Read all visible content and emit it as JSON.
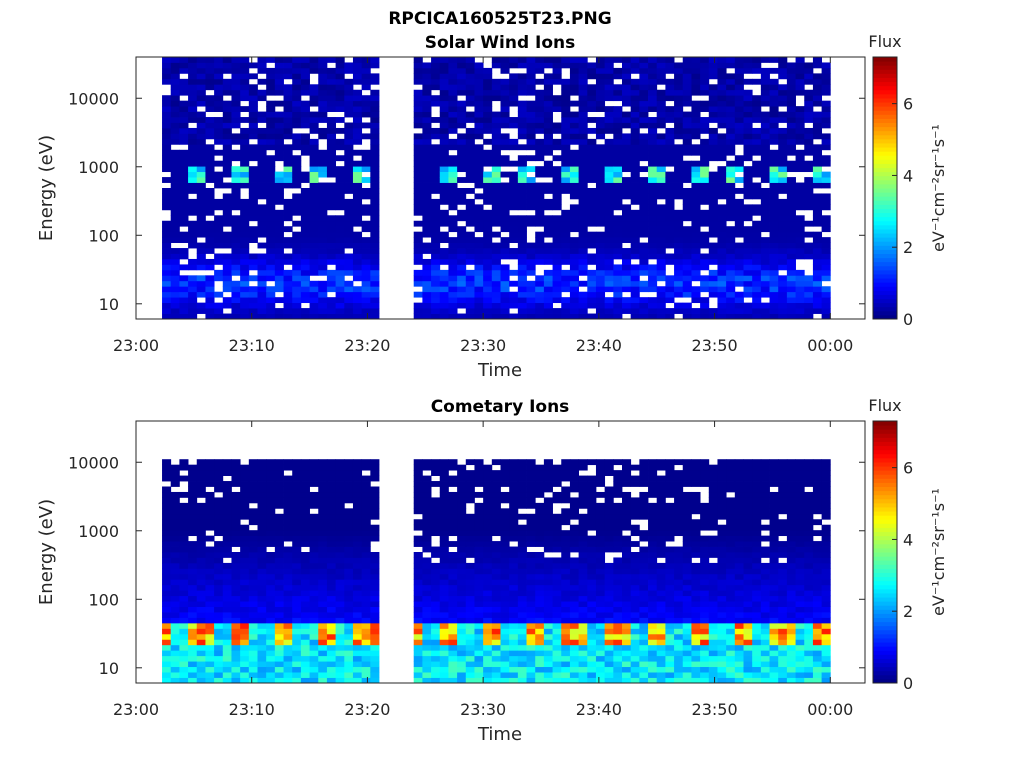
{
  "figure": {
    "title": "RPCICA160525T23.PNG",
    "colors": {
      "plot_background": "#ffffff",
      "axis": "#262626",
      "text": "#262626",
      "colormap": "jet"
    }
  },
  "chart_data": [
    {
      "type": "heatmap",
      "title": "Solar Wind Ions",
      "xlabel": "Time",
      "ylabel": "Energy (eV)",
      "y_scale": "log",
      "ylim": [
        6,
        40000
      ],
      "x_range": [
        "23:00",
        "00:03"
      ],
      "x_ticks": [
        "23:00",
        "23:10",
        "23:20",
        "23:30",
        "23:40",
        "23:50",
        "00:00"
      ],
      "y_ticks": [
        "10",
        "100",
        "1000",
        "10000"
      ],
      "y_tick_values": [
        10,
        100,
        1000,
        10000
      ],
      "grid": false,
      "data_gaps": [
        {
          "from": "23:00",
          "to": "23:02"
        },
        {
          "from": "23:21",
          "to": "23:24"
        },
        {
          "from": "00:00",
          "to": "00:03"
        }
      ],
      "features": [
        {
          "description": "periodic high-flux bands near 1000 eV",
          "energy_eV": 800,
          "flux_max": 3.5
        },
        {
          "description": "enhanced patches at low energy",
          "energy_eV": 30,
          "flux_max": 3
        }
      ],
      "colorbar": {
        "title": "Flux",
        "label": "eV⁻¹cm⁻²sr⁻¹s⁻¹",
        "range": [
          0,
          7.3
        ],
        "ticks": [
          "0",
          "2",
          "4",
          "6"
        ],
        "tick_values": [
          0,
          2,
          4,
          6
        ]
      }
    },
    {
      "type": "heatmap",
      "title": "Cometary Ions",
      "xlabel": "Time",
      "ylabel": "Energy (eV)",
      "y_scale": "log",
      "ylim": [
        6,
        40000
      ],
      "x_range": [
        "23:00",
        "00:03"
      ],
      "x_ticks": [
        "23:00",
        "23:10",
        "23:20",
        "23:30",
        "23:40",
        "23:50",
        "00:00"
      ],
      "y_ticks": [
        "10",
        "100",
        "1000",
        "10000"
      ],
      "y_tick_values": [
        10,
        100,
        1000,
        10000
      ],
      "grid": false,
      "data_gaps": [
        {
          "from": "23:00",
          "to": "23:02"
        },
        {
          "from": "23:21",
          "to": "23:24"
        },
        {
          "from": "00:00",
          "to": "00:03"
        }
      ],
      "features": [
        {
          "description": "periodic high-flux peaks at low energy",
          "energy_eV": 25,
          "flux_max": 6
        },
        {
          "description": "background flux extends up to about 10000 eV",
          "energy_eV": 10000,
          "flux_max": 1
        }
      ],
      "colorbar": {
        "title": "Flux",
        "label": "eV⁻¹cm⁻²sr⁻¹s⁻¹",
        "range": [
          0,
          7.3
        ],
        "ticks": [
          "0",
          "2",
          "4",
          "6"
        ],
        "tick_values": [
          0,
          2,
          4,
          6
        ]
      }
    }
  ]
}
